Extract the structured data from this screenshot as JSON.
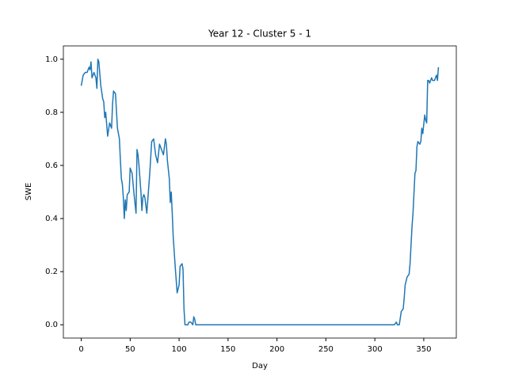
{
  "chart_data": {
    "type": "line",
    "title": "Year 12 - Cluster 5 - 1",
    "xlabel": "Day",
    "ylabel": "SWE",
    "x": [
      0,
      2,
      4,
      6,
      8,
      9,
      10,
      11,
      13,
      15,
      16,
      17,
      18,
      20,
      22,
      23,
      24,
      25,
      27,
      29,
      31,
      32,
      33,
      35,
      37,
      39,
      40,
      41,
      42,
      43,
      44,
      45,
      46,
      47,
      49,
      50,
      52,
      54,
      56,
      57,
      58,
      59,
      61,
      62,
      63,
      64,
      65,
      66,
      67,
      70,
      72,
      74,
      76,
      78,
      80,
      82,
      84,
      86,
      87,
      88,
      90,
      91,
      92,
      93,
      94,
      96,
      98,
      100,
      101,
      103,
      104,
      105,
      106,
      107,
      109,
      110,
      112,
      114,
      115,
      116,
      117,
      118,
      119,
      320,
      322,
      323,
      325,
      327,
      329,
      330,
      331,
      333,
      335,
      336,
      337,
      338,
      339,
      341,
      342,
      343,
      344,
      346,
      347,
      348,
      349,
      351,
      352,
      353,
      354,
      355,
      356,
      357,
      358,
      359,
      361,
      363,
      364,
      365
    ],
    "series": [
      {
        "name": "SWE",
        "color": "#1f77b4",
        "values": [
          0.9,
          0.94,
          0.95,
          0.95,
          0.97,
          0.96,
          0.99,
          0.93,
          0.95,
          0.93,
          0.89,
          1.0,
          0.99,
          0.9,
          0.85,
          0.84,
          0.78,
          0.8,
          0.71,
          0.76,
          0.74,
          0.83,
          0.88,
          0.87,
          0.74,
          0.7,
          0.62,
          0.55,
          0.53,
          0.48,
          0.4,
          0.47,
          0.43,
          0.49,
          0.5,
          0.59,
          0.57,
          0.49,
          0.42,
          0.66,
          0.64,
          0.6,
          0.5,
          0.43,
          0.48,
          0.49,
          0.48,
          0.45,
          0.42,
          0.57,
          0.69,
          0.7,
          0.64,
          0.61,
          0.68,
          0.66,
          0.64,
          0.7,
          0.68,
          0.62,
          0.55,
          0.46,
          0.5,
          0.42,
          0.33,
          0.22,
          0.12,
          0.15,
          0.22,
          0.23,
          0.21,
          0.06,
          0.0,
          0.0,
          0.0,
          0.01,
          0.01,
          0.0,
          0.03,
          0.02,
          0.0,
          0.0,
          0.0,
          0.0,
          0.01,
          0.0,
          0.0,
          0.05,
          0.06,
          0.1,
          0.15,
          0.18,
          0.19,
          0.23,
          0.3,
          0.37,
          0.42,
          0.57,
          0.58,
          0.67,
          0.69,
          0.68,
          0.69,
          0.74,
          0.72,
          0.79,
          0.77,
          0.76,
          0.92,
          0.92,
          0.91,
          0.92,
          0.93,
          0.92,
          0.92,
          0.94,
          0.92,
          0.97
        ]
      }
    ],
    "xlim": [
      -18.25,
      383.25
    ],
    "ylim": [
      -0.05,
      1.05
    ],
    "xticks": [
      0,
      50,
      100,
      150,
      200,
      250,
      300,
      350
    ],
    "yticks": [
      {
        "value": 0,
        "label": "0.0"
      },
      0.2,
      0.4,
      0.6,
      0.8,
      {
        "value": 1,
        "label": "1.0"
      }
    ],
    "grid": false
  }
}
